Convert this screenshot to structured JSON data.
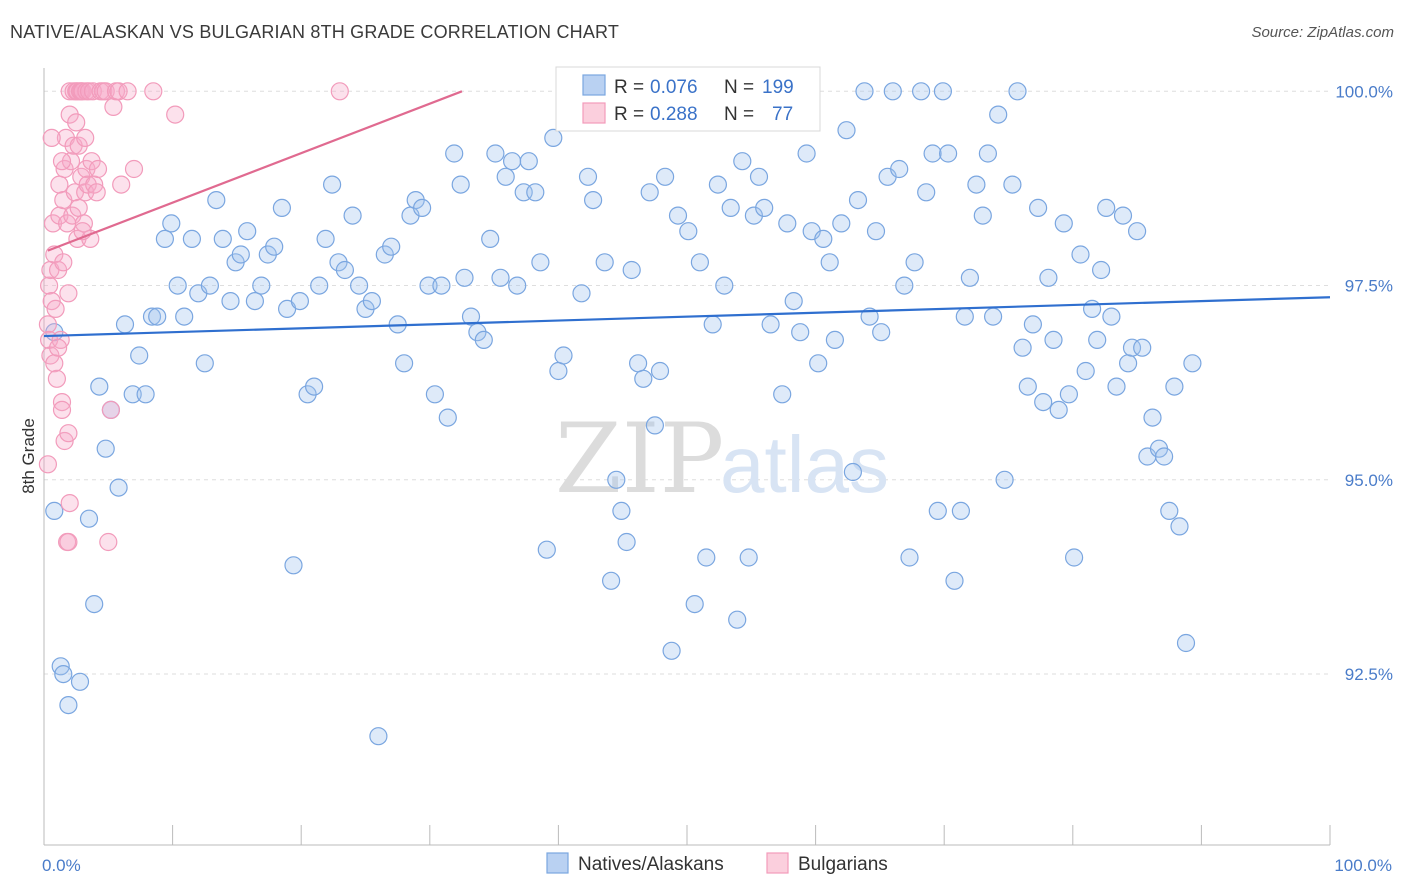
{
  "title": "NATIVE/ALASKAN VS BULGARIAN 8TH GRADE CORRELATION CHART",
  "source": "Source: ZipAtlas.com",
  "watermark": {
    "zip": "ZIP",
    "atlas": "atlas"
  },
  "chart_data": {
    "type": "scatter",
    "ylabel": "8th Grade",
    "xlim": [
      0,
      100
    ],
    "ylim": [
      90.3,
      100.3
    ],
    "x_tick_labels": [
      {
        "value": 0,
        "label": "0.0%"
      },
      {
        "value": 100,
        "label": "100.0%"
      }
    ],
    "y_ticks": [
      {
        "value": 100,
        "label": "100.0%"
      },
      {
        "value": 97.5,
        "label": "97.5%"
      },
      {
        "value": 95,
        "label": "95.0%"
      },
      {
        "value": 92.5,
        "label": "92.5%"
      }
    ],
    "grid": true,
    "legend_placement": "top-center",
    "legend": [
      {
        "r_label": "R =",
        "r": "0.076",
        "n_label": "N =",
        "n": "199"
      },
      {
        "r_label": "R =",
        "r": "0.288",
        "n_label": "N =",
        "n": "77"
      }
    ],
    "series": [
      {
        "name": "Natives/Alaskans",
        "color": "#7aa6e0",
        "line_color": "#2f6fcf",
        "trend": {
          "x": [
            0,
            100
          ],
          "y": [
            96.85,
            97.35
          ]
        },
        "points": [
          [
            0.8,
            96.9
          ],
          [
            0.8,
            94.6
          ],
          [
            1.3,
            92.6
          ],
          [
            1.9,
            92.1
          ],
          [
            1.5,
            92.5
          ],
          [
            2.8,
            92.4
          ],
          [
            3.5,
            94.5
          ],
          [
            3.9,
            93.4
          ],
          [
            4.3,
            96.2
          ],
          [
            4.8,
            95.4
          ],
          [
            5.2,
            95.9
          ],
          [
            5.8,
            94.9
          ],
          [
            6.3,
            97.0
          ],
          [
            6.9,
            96.1
          ],
          [
            7.4,
            96.6
          ],
          [
            7.9,
            96.1
          ],
          [
            8.4,
            97.1
          ],
          [
            8.8,
            97.1
          ],
          [
            9.4,
            98.1
          ],
          [
            9.9,
            98.3
          ],
          [
            10.4,
            97.5
          ],
          [
            10.9,
            97.1
          ],
          [
            11.5,
            98.1
          ],
          [
            12.0,
            97.4
          ],
          [
            12.5,
            96.5
          ],
          [
            12.9,
            97.5
          ],
          [
            13.4,
            98.6
          ],
          [
            13.9,
            98.1
          ],
          [
            14.5,
            97.3
          ],
          [
            14.9,
            97.8
          ],
          [
            15.3,
            97.9
          ],
          [
            15.8,
            98.2
          ],
          [
            16.4,
            97.3
          ],
          [
            16.9,
            97.5
          ],
          [
            17.4,
            97.9
          ],
          [
            17.9,
            98.0
          ],
          [
            18.5,
            98.5
          ],
          [
            18.9,
            97.2
          ],
          [
            19.4,
            93.9
          ],
          [
            19.9,
            97.3
          ],
          [
            20.5,
            96.1
          ],
          [
            21.0,
            96.2
          ],
          [
            21.4,
            97.5
          ],
          [
            21.9,
            98.1
          ],
          [
            22.4,
            98.8
          ],
          [
            22.9,
            97.8
          ],
          [
            23.4,
            97.7
          ],
          [
            24.0,
            98.4
          ],
          [
            24.5,
            97.5
          ],
          [
            25.0,
            97.2
          ],
          [
            25.5,
            97.3
          ],
          [
            26.0,
            91.7
          ],
          [
            26.5,
            97.9
          ],
          [
            27.0,
            98.0
          ],
          [
            27.5,
            97.0
          ],
          [
            28.0,
            96.5
          ],
          [
            28.5,
            98.4
          ],
          [
            28.9,
            98.6
          ],
          [
            29.4,
            98.5
          ],
          [
            29.9,
            97.5
          ],
          [
            30.4,
            96.1
          ],
          [
            30.9,
            97.5
          ],
          [
            31.4,
            95.8
          ],
          [
            31.9,
            99.2
          ],
          [
            32.4,
            98.8
          ],
          [
            32.7,
            97.6
          ],
          [
            33.2,
            97.1
          ],
          [
            33.7,
            96.9
          ],
          [
            34.2,
            96.8
          ],
          [
            34.7,
            98.1
          ],
          [
            35.1,
            99.2
          ],
          [
            35.5,
            97.6
          ],
          [
            35.9,
            98.9
          ],
          [
            36.4,
            99.1
          ],
          [
            36.8,
            97.5
          ],
          [
            37.3,
            98.7
          ],
          [
            37.7,
            99.1
          ],
          [
            38.2,
            98.7
          ],
          [
            38.6,
            97.8
          ],
          [
            39.1,
            94.1
          ],
          [
            39.6,
            99.4
          ],
          [
            40.0,
            96.4
          ],
          [
            40.4,
            96.6
          ],
          [
            40.9,
            100.0
          ],
          [
            41.3,
            100.0
          ],
          [
            41.8,
            97.4
          ],
          [
            42.3,
            98.9
          ],
          [
            42.7,
            98.6
          ],
          [
            43.1,
            100.0
          ],
          [
            43.6,
            97.8
          ],
          [
            44.1,
            93.7
          ],
          [
            44.5,
            95.0
          ],
          [
            44.9,
            94.6
          ],
          [
            45.3,
            94.2
          ],
          [
            45.7,
            97.7
          ],
          [
            46.2,
            96.5
          ],
          [
            46.6,
            96.3
          ],
          [
            47.1,
            98.7
          ],
          [
            47.5,
            95.7
          ],
          [
            47.9,
            96.4
          ],
          [
            48.3,
            98.9
          ],
          [
            48.8,
            92.8
          ],
          [
            49.3,
            98.4
          ],
          [
            49.7,
            99.7
          ],
          [
            50.1,
            98.2
          ],
          [
            50.6,
            93.4
          ],
          [
            51.0,
            97.8
          ],
          [
            51.5,
            94.0
          ],
          [
            52.0,
            97.0
          ],
          [
            52.4,
            98.8
          ],
          [
            52.9,
            97.5
          ],
          [
            53.4,
            98.5
          ],
          [
            53.9,
            93.2
          ],
          [
            54.3,
            99.1
          ],
          [
            54.8,
            94.0
          ],
          [
            55.2,
            98.4
          ],
          [
            55.6,
            98.9
          ],
          [
            56.0,
            98.5
          ],
          [
            56.5,
            97.0
          ],
          [
            57.0,
            100.0
          ],
          [
            57.4,
            96.1
          ],
          [
            57.8,
            98.3
          ],
          [
            58.3,
            97.3
          ],
          [
            58.8,
            96.9
          ],
          [
            59.3,
            99.2
          ],
          [
            59.7,
            98.2
          ],
          [
            60.2,
            96.5
          ],
          [
            60.6,
            98.1
          ],
          [
            61.1,
            97.8
          ],
          [
            61.5,
            96.8
          ],
          [
            62.0,
            98.3
          ],
          [
            62.4,
            99.5
          ],
          [
            62.9,
            95.1
          ],
          [
            63.3,
            98.6
          ],
          [
            63.8,
            100.0
          ],
          [
            64.2,
            97.1
          ],
          [
            64.7,
            98.2
          ],
          [
            65.1,
            96.9
          ],
          [
            65.6,
            98.9
          ],
          [
            66.0,
            100.0
          ],
          [
            66.5,
            99.0
          ],
          [
            66.9,
            97.5
          ],
          [
            67.3,
            94.0
          ],
          [
            67.7,
            97.8
          ],
          [
            68.2,
            100.0
          ],
          [
            68.6,
            98.7
          ],
          [
            69.1,
            99.2
          ],
          [
            69.5,
            94.6
          ],
          [
            69.9,
            100.0
          ],
          [
            70.3,
            99.2
          ],
          [
            70.8,
            93.7
          ],
          [
            71.3,
            94.6
          ],
          [
            71.6,
            97.1
          ],
          [
            72.0,
            97.6
          ],
          [
            72.5,
            98.8
          ],
          [
            73.0,
            98.4
          ],
          [
            73.4,
            99.2
          ],
          [
            73.8,
            97.1
          ],
          [
            74.2,
            99.7
          ],
          [
            74.7,
            95.0
          ],
          [
            75.3,
            98.8
          ],
          [
            75.7,
            100.0
          ],
          [
            76.1,
            96.7
          ],
          [
            76.5,
            96.2
          ],
          [
            76.9,
            97.0
          ],
          [
            77.3,
            98.5
          ],
          [
            77.7,
            96.0
          ],
          [
            78.1,
            97.6
          ],
          [
            78.5,
            96.8
          ],
          [
            78.9,
            95.9
          ],
          [
            79.3,
            98.3
          ],
          [
            79.7,
            96.1
          ],
          [
            80.1,
            94.0
          ],
          [
            80.6,
            97.9
          ],
          [
            81.0,
            96.4
          ],
          [
            81.5,
            97.2
          ],
          [
            81.9,
            96.8
          ],
          [
            82.2,
            97.7
          ],
          [
            82.6,
            98.5
          ],
          [
            83.0,
            97.1
          ],
          [
            83.4,
            96.2
          ],
          [
            83.9,
            98.4
          ],
          [
            84.3,
            96.5
          ],
          [
            84.6,
            96.7
          ],
          [
            85.0,
            98.2
          ],
          [
            85.4,
            96.7
          ],
          [
            85.8,
            95.3
          ],
          [
            86.2,
            95.8
          ],
          [
            86.7,
            95.4
          ],
          [
            87.1,
            95.3
          ],
          [
            87.5,
            94.6
          ],
          [
            87.9,
            96.2
          ],
          [
            88.3,
            94.4
          ],
          [
            88.8,
            92.9
          ],
          [
            89.3,
            96.5
          ]
        ]
      },
      {
        "name": "Bulgarians",
        "color": "#f29bbb",
        "line_color": "#e06a90",
        "trend": {
          "x": [
            0.3,
            32.5
          ],
          "y": [
            97.95,
            100.0
          ]
        },
        "points": [
          [
            0.3,
            97.0
          ],
          [
            0.3,
            95.2
          ],
          [
            0.4,
            96.8
          ],
          [
            0.4,
            97.5
          ],
          [
            0.5,
            97.7
          ],
          [
            0.5,
            96.6
          ],
          [
            0.6,
            97.3
          ],
          [
            0.7,
            98.3
          ],
          [
            0.8,
            96.5
          ],
          [
            0.8,
            97.9
          ],
          [
            0.9,
            97.2
          ],
          [
            1.0,
            96.3
          ],
          [
            1.1,
            97.7
          ],
          [
            1.2,
            98.4
          ],
          [
            1.2,
            98.8
          ],
          [
            1.3,
            96.8
          ],
          [
            1.4,
            96.0
          ],
          [
            1.4,
            95.9
          ],
          [
            1.5,
            98.6
          ],
          [
            1.5,
            97.8
          ],
          [
            1.6,
            99.0
          ],
          [
            1.6,
            95.5
          ],
          [
            1.7,
            99.4
          ],
          [
            1.8,
            98.3
          ],
          [
            1.8,
            94.2
          ],
          [
            1.9,
            95.6
          ],
          [
            1.9,
            94.2
          ],
          [
            2.0,
            99.7
          ],
          [
            2.0,
            100.0
          ],
          [
            2.1,
            99.1
          ],
          [
            2.2,
            98.4
          ],
          [
            2.3,
            100.0
          ],
          [
            2.3,
            99.3
          ],
          [
            2.4,
            98.7
          ],
          [
            2.5,
            100.0
          ],
          [
            2.6,
            98.1
          ],
          [
            2.6,
            100.0
          ],
          [
            2.7,
            98.5
          ],
          [
            2.7,
            99.3
          ],
          [
            2.8,
            100.0
          ],
          [
            2.9,
            98.9
          ],
          [
            2.9,
            100.0
          ],
          [
            3.0,
            100.0
          ],
          [
            3.1,
            98.3
          ],
          [
            3.2,
            98.7
          ],
          [
            3.2,
            99.4
          ],
          [
            3.3,
            100.0
          ],
          [
            3.3,
            99.0
          ],
          [
            3.4,
            98.8
          ],
          [
            3.5,
            100.0
          ],
          [
            3.6,
            98.1
          ],
          [
            3.7,
            99.1
          ],
          [
            3.8,
            100.0
          ],
          [
            3.9,
            98.8
          ],
          [
            4.1,
            98.7
          ],
          [
            4.2,
            99.0
          ],
          [
            4.4,
            100.0
          ],
          [
            4.6,
            100.0
          ],
          [
            4.8,
            100.0
          ],
          [
            5.0,
            94.2
          ],
          [
            5.2,
            95.9
          ],
          [
            5.4,
            99.8
          ],
          [
            5.6,
            100.0
          ],
          [
            5.8,
            100.0
          ],
          [
            6.0,
            98.8
          ],
          [
            6.5,
            100.0
          ],
          [
            7.0,
            99.0
          ],
          [
            8.5,
            100.0
          ],
          [
            10.2,
            99.7
          ],
          [
            23.0,
            100.0
          ],
          [
            1.1,
            96.7
          ],
          [
            2.0,
            94.7
          ],
          [
            1.4,
            99.1
          ],
          [
            2.5,
            99.6
          ],
          [
            0.6,
            99.4
          ],
          [
            3.0,
            98.2
          ],
          [
            1.9,
            97.4
          ]
        ]
      }
    ]
  },
  "bottom_legend": [
    "Natives/Alaskans",
    "Bulgarians"
  ]
}
